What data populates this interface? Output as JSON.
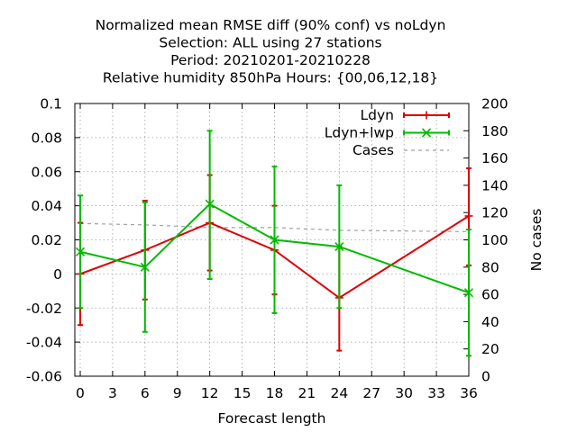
{
  "chart_data": {
    "type": "line",
    "title": [
      "Normalized mean RMSE diff (90% conf) vs noLdyn",
      "Selection: ALL using    27 stations",
      "Period: 20210201-20210228",
      "Relative humidity 850hPa   Hours: {00,06,12,18}"
    ],
    "xlabel": "Forecast length",
    "ylabel": "",
    "y2label": "No cases",
    "xlim": [
      -0.5,
      36
    ],
    "ylim": [
      -0.06,
      0.1
    ],
    "y2lim": [
      0,
      200
    ],
    "xticks": [
      0,
      3,
      6,
      9,
      12,
      15,
      18,
      21,
      24,
      27,
      30,
      33,
      36
    ],
    "yticks": [
      -0.06,
      -0.04,
      -0.02,
      0,
      0.02,
      0.04,
      0.06,
      0.08,
      0.1
    ],
    "ytick_labels": [
      "-0.06",
      "-0.04",
      "-0.02",
      "0",
      "0.02",
      "0.04",
      "0.06",
      "0.08",
      "0.1"
    ],
    "y2ticks": [
      0,
      20,
      40,
      60,
      80,
      100,
      120,
      140,
      160,
      180,
      200
    ],
    "grid": true,
    "legend_position": "top-right",
    "series": [
      {
        "name": "Ldyn",
        "color": "#dd0000",
        "marker": "plus",
        "axis": "y",
        "x": [
          0,
          6,
          12,
          18,
          24,
          36
        ],
        "y": [
          0.0,
          0.014,
          0.03,
          0.014,
          -0.014,
          0.034
        ],
        "err_low": [
          -0.03,
          -0.015,
          0.002,
          -0.012,
          -0.045,
          0.005
        ],
        "err_high": [
          0.03,
          0.043,
          0.058,
          0.04,
          0.016,
          0.062
        ]
      },
      {
        "name": "Ldyn+lwp",
        "color": "#00bb00",
        "marker": "cross",
        "axis": "y",
        "x": [
          0,
          6,
          12,
          18,
          24,
          36
        ],
        "y": [
          0.013,
          0.004,
          0.041,
          0.02,
          0.016,
          -0.011
        ],
        "err_low": [
          -0.02,
          -0.034,
          -0.003,
          -0.023,
          -0.02,
          -0.048
        ],
        "err_high": [
          0.046,
          0.042,
          0.084,
          0.063,
          0.052,
          0.026
        ]
      },
      {
        "name": "Cases",
        "color": "#a0a0a0",
        "dashed": true,
        "axis": "y2",
        "x": [
          0,
          6,
          12,
          18,
          24,
          36
        ],
        "y": [
          112,
          111,
          109,
          109,
          107,
          106
        ]
      }
    ]
  }
}
